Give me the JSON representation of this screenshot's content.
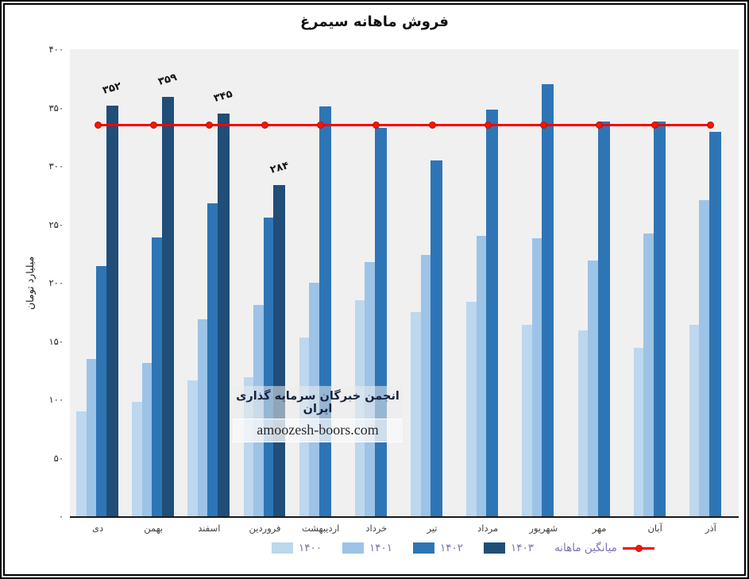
{
  "title": "فروش ماهانه سیمرغ",
  "chart_data": {
    "type": "bar",
    "title": "فروش ماهانه سیمرغ",
    "xlabel": "",
    "ylabel": "میلیارد تومان",
    "ylim": [
      0,
      400
    ],
    "grid": false,
    "legend_position": "bottom",
    "plot_background": "#F0F0F0",
    "categories": [
      "دی",
      "بهمن",
      "اسفند",
      "فروردین",
      "اردیبهشت",
      "خرداد",
      "تیر",
      "مرداد",
      "شهریور",
      "مهر",
      "آبان",
      "آذر"
    ],
    "y_ticks": [
      {
        "label": "۴۰۰",
        "value": 400
      },
      {
        "label": "۳۵۰",
        "value": 350
      },
      {
        "label": "۳۰۰",
        "value": 300
      },
      {
        "label": "۲۵۰",
        "value": 250
      },
      {
        "label": "۲۰۰",
        "value": 200
      },
      {
        "label": "۱۵۰",
        "value": 150
      },
      {
        "label": "۱۰۰",
        "value": 100
      },
      {
        "label": "۵۰",
        "value": 50
      },
      {
        "label": "۰",
        "value": 0
      }
    ],
    "series": [
      {
        "name": "۱۴۰۰",
        "color": "#BDD7EE",
        "values": [
          90,
          98,
          116,
          119,
          153,
          185,
          175,
          184,
          164,
          159,
          144,
          164
        ]
      },
      {
        "name": "۱۴۰۱",
        "color": "#9DC3E6",
        "values": [
          135,
          131,
          169,
          181,
          200,
          218,
          224,
          240,
          238,
          219,
          242,
          271
        ]
      },
      {
        "name": "۱۴۰۲",
        "color": "#2E75B6",
        "values": [
          214,
          239,
          268,
          256,
          351,
          333,
          305,
          348,
          370,
          338,
          338,
          329
        ]
      },
      {
        "name": "۱۴۰۳",
        "color": "#1F4E79",
        "values": [
          352,
          359,
          345,
          284,
          null,
          null,
          null,
          null,
          null,
          null,
          null,
          null
        ]
      }
    ],
    "data_labels": {
      "series": "۱۴۰۳",
      "labels": [
        {
          "category_index": 0,
          "text": "۳۵۲",
          "value": 352
        },
        {
          "category_index": 1,
          "text": "۳۵۹",
          "value": 359
        },
        {
          "category_index": 2,
          "text": "۳۴۵",
          "value": 345
        },
        {
          "category_index": 3,
          "text": "۲۸۴",
          "value": 284
        }
      ]
    },
    "average_line": {
      "label": "میانگین ماهانه",
      "value": 335,
      "color": "#FF0000"
    }
  },
  "watermark": {
    "line1": "انجمن خبرگان سرمایه گذاری ایران",
    "line2": "amoozesh-boors.com"
  },
  "colors": {
    "legend_text": "#7E6FB3",
    "axis_text": "#3f3f3f",
    "average_line": "#FF0000"
  }
}
